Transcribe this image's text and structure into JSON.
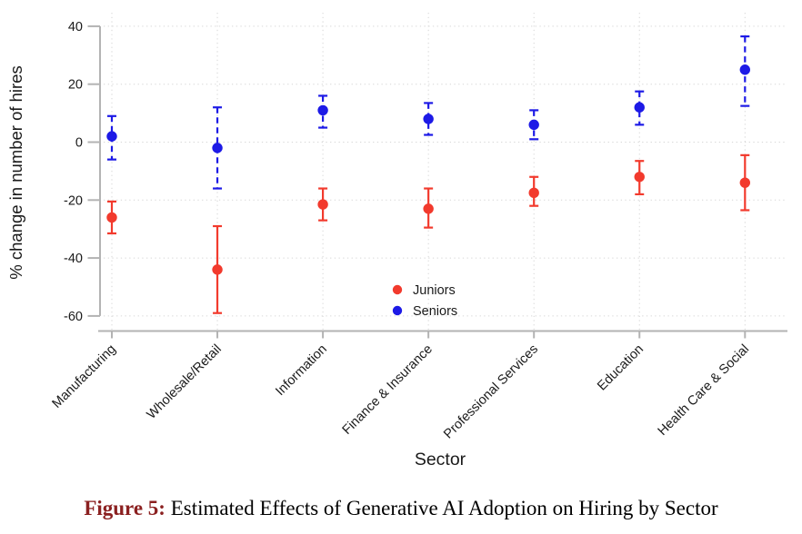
{
  "figure": {
    "caption_label": "Figure 5:",
    "caption_text": " Estimated Effects of Generative AI Adoption on Hiring by Sector",
    "caption_label_color": "#8b2020"
  },
  "chart_data": {
    "type": "scatter",
    "subtype": "dot-plot-with-error-bars",
    "title": "",
    "xlabel": "Sector",
    "ylabel": "% change in number of hires",
    "ylim": [
      -60,
      40
    ],
    "yticks": [
      40,
      20,
      0,
      -20,
      -40,
      -60
    ],
    "grid": "dotted",
    "legend_position": "inside-bottom-center",
    "categories": [
      "Manufacturing",
      "Wholesale/Retail",
      "Information",
      "Finance & Insurance",
      "Professional Services",
      "Education",
      "Health Care & Social"
    ],
    "series": [
      {
        "name": "Juniors",
        "color": "#f23a2d",
        "ci_line_style": "solid",
        "values": [
          -26,
          -44,
          -21.5,
          -23,
          -17.5,
          -12,
          -14
        ],
        "ci_low": [
          -31.5,
          -59,
          -27,
          -29.5,
          -22,
          -18,
          -23.5
        ],
        "ci_high": [
          -20.5,
          -29,
          -16,
          -16,
          -12,
          -6.5,
          -4.5
        ]
      },
      {
        "name": "Seniors",
        "color": "#1d1ae6",
        "ci_line_style": "dashed",
        "values": [
          2,
          -2,
          11,
          8,
          6,
          12,
          25
        ],
        "ci_low": [
          -6,
          -16,
          5,
          2.5,
          1,
          6,
          12.5
        ],
        "ci_high": [
          9,
          12,
          16,
          13.5,
          11,
          17.5,
          36.5
        ]
      }
    ],
    "style": {
      "axis_color": "#b3b3b3",
      "grid_color": "#d6d6d6",
      "text_color": "#1a1a1a"
    }
  }
}
